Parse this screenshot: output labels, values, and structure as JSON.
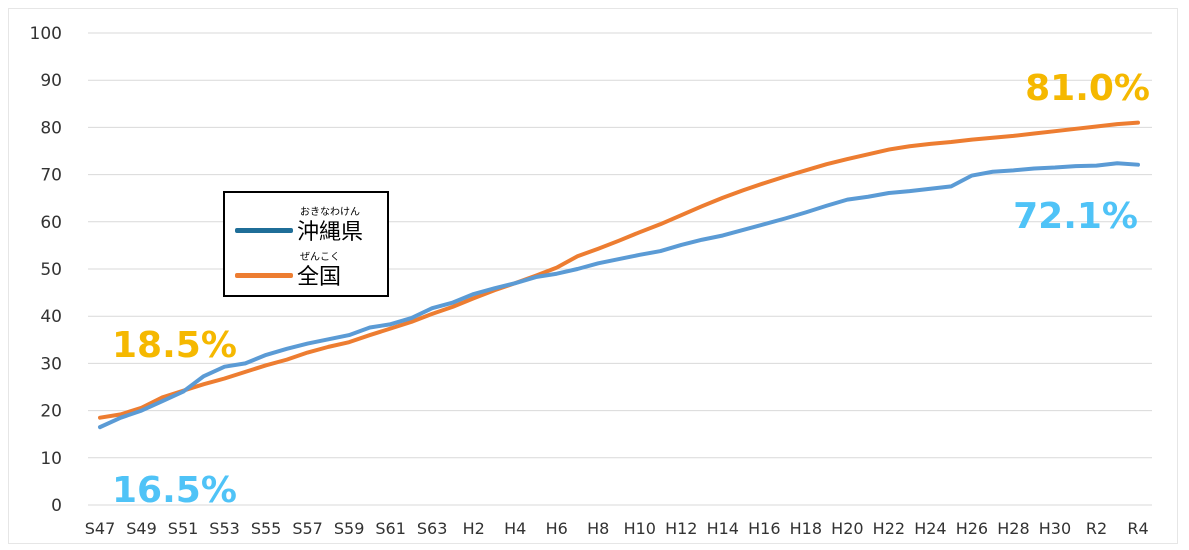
{
  "chart_data": {
    "type": "line",
    "title": "",
    "xlabel": "",
    "ylabel": "",
    "ylim": [
      0,
      100
    ],
    "yticks": [
      0,
      10,
      20,
      30,
      40,
      50,
      60,
      70,
      80,
      90,
      100
    ],
    "x": [
      "S47",
      "S48",
      "S49",
      "S50",
      "S51",
      "S52",
      "S53",
      "S54",
      "S55",
      "S56",
      "S57",
      "S58",
      "S59",
      "S60",
      "S61",
      "S62",
      "S63",
      "H1",
      "H2",
      "H3",
      "H4",
      "H5",
      "H6",
      "H7",
      "H8",
      "H9",
      "H10",
      "H11",
      "H12",
      "H13",
      "H14",
      "H15",
      "H16",
      "H17",
      "H18",
      "H19",
      "H20",
      "H21",
      "H22",
      "H23",
      "H24",
      "H25",
      "H26",
      "H27",
      "H28",
      "H29",
      "H30",
      "R1",
      "R2",
      "R3",
      "R4"
    ],
    "xtick_labels": [
      "S47",
      "S49",
      "S51",
      "S53",
      "S55",
      "S57",
      "S59",
      "S61",
      "S63",
      "H2",
      "H4",
      "H6",
      "H8",
      "H10",
      "H12",
      "H14",
      "H16",
      "H18",
      "H20",
      "H22",
      "H24",
      "H26",
      "H28",
      "H30",
      "R2",
      "R4"
    ],
    "grid": true,
    "legend": "left-middle",
    "series": [
      {
        "name": "沖縄県",
        "ruby": "おきなわけん",
        "color": "#5B9BD5",
        "legend_color": "#1F6E98",
        "values": [
          16.5,
          18.5,
          20.0,
          22.0,
          24.0,
          27.3,
          29.3,
          30.0,
          31.8,
          33.1,
          34.2,
          35.1,
          36.0,
          37.6,
          38.3,
          39.6,
          41.7,
          42.9,
          44.7,
          45.9,
          47.0,
          48.3,
          49.0,
          50.0,
          51.2,
          52.1,
          53.0,
          53.8,
          55.1,
          56.2,
          57.1,
          58.3,
          59.5,
          60.7,
          62.0,
          63.4,
          64.7,
          65.3,
          66.1,
          66.5,
          67.0,
          67.5,
          69.8,
          70.6,
          70.9,
          71.3,
          71.5,
          71.8,
          71.9,
          72.4,
          72.1
        ]
      },
      {
        "name": "全国",
        "ruby": "ぜんこく",
        "color": "#ED7D31",
        "legend_color": "#ED7D31",
        "values": [
          18.5,
          19.2,
          20.6,
          22.8,
          24.2,
          25.6,
          26.8,
          28.2,
          29.6,
          30.8,
          32.3,
          33.5,
          34.5,
          36.0,
          37.4,
          38.8,
          40.5,
          42.0,
          43.8,
          45.5,
          47.0,
          48.6,
          50.3,
          52.7,
          54.3,
          56.0,
          57.8,
          59.5,
          61.4,
          63.3,
          65.1,
          66.7,
          68.2,
          69.6,
          70.9,
          72.2,
          73.3,
          74.3,
          75.3,
          76.0,
          76.5,
          76.9,
          77.4,
          77.8,
          78.2,
          78.7,
          79.2,
          79.7,
          80.2,
          80.7,
          81.0
        ]
      }
    ],
    "annotations": [
      {
        "text": "81.0%",
        "color": "#F5B800"
      },
      {
        "text": "72.1%",
        "color": "#4FC3F7"
      },
      {
        "text": "18.5%",
        "color": "#F5B800"
      },
      {
        "text": "16.5%",
        "color": "#4FC3F7"
      }
    ]
  }
}
